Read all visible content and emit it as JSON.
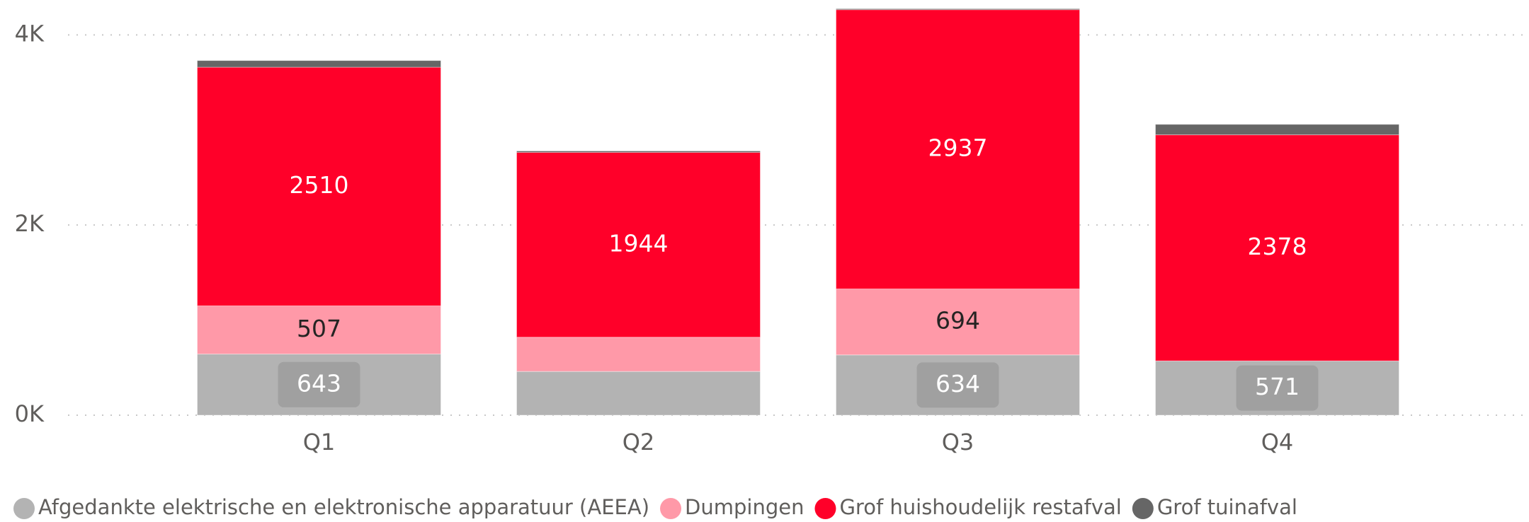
{
  "chart_data": {
    "type": "stacked_bar",
    "categories": [
      "Q1",
      "Q2",
      "Q3",
      "Q4"
    ],
    "series": [
      {
        "name": "Afgedankte elektrische en elektronische apparatuur (AEEA)",
        "color": "#b3b3b3",
        "values": [
          643,
          460,
          634,
          571
        ],
        "value_labels": [
          "643",
          null,
          "634",
          "571"
        ]
      },
      {
        "name": "Dumpingen",
        "color": "#ff99a8",
        "values": [
          507,
          360,
          694,
          0
        ],
        "value_labels": [
          "507",
          null,
          "694",
          null
        ]
      },
      {
        "name": "Grof huishoudelijk restafval",
        "color": "#ff0029",
        "values": [
          2510,
          1944,
          2937,
          2378
        ],
        "value_labels": [
          "2510",
          "1944",
          "2937",
          "2378"
        ]
      },
      {
        "name": "Grof tuinafval",
        "color": "#666666",
        "values": [
          70,
          15,
          10,
          110
        ],
        "value_labels": [
          null,
          null,
          null,
          null
        ]
      }
    ],
    "ylim": [
      0,
      4300
    ],
    "yticks": [
      {
        "value": 0,
        "label": "0K"
      },
      {
        "value": 2000,
        "label": "2K"
      },
      {
        "value": 4000,
        "label": "4K"
      }
    ],
    "grid": true,
    "legend": "bottom"
  }
}
